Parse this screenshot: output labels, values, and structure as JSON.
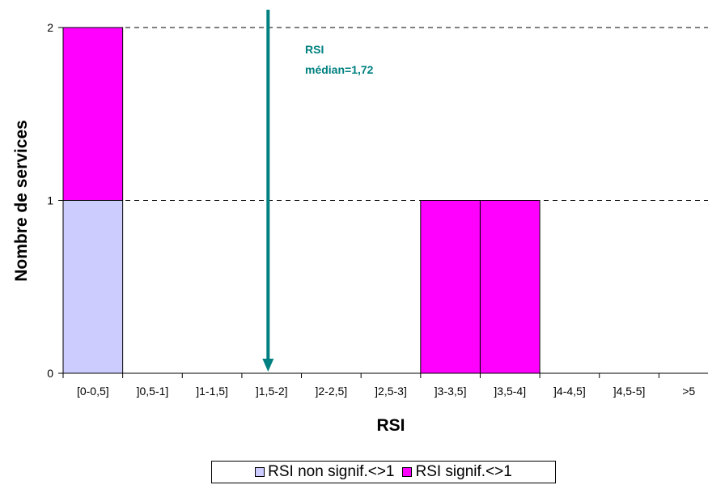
{
  "chart_data": {
    "type": "bar",
    "stacked": true,
    "categories": [
      "[0-0,5]",
      "]0,5-1]",
      "]1-1,5]",
      "]1,5-2]",
      "]2-2,5]",
      "]2,5-3]",
      "]3-3,5]",
      "]3,5-4]",
      "]4-4,5]",
      "]4,5-5]",
      ">5"
    ],
    "series": [
      {
        "name": "RSI non signif.<>1",
        "color": "#CCCCFF",
        "values": [
          1,
          0,
          0,
          0,
          0,
          0,
          0,
          0,
          0,
          0,
          0
        ]
      },
      {
        "name": "RSI signif.<>1",
        "color": "#FF00FF",
        "values": [
          1,
          0,
          0,
          0,
          0,
          0,
          1,
          1,
          0,
          0,
          0
        ]
      }
    ],
    "xlabel": "RSI",
    "ylabel": "Nombre de services",
    "ylim": [
      0,
      2
    ],
    "yticks": [
      "0",
      "1",
      "2"
    ],
    "grid": "horizontal dashed",
    "legend_position": "bottom",
    "annotation": {
      "line1": "RSI",
      "line2": "médian=1,72",
      "x_value": 1.72,
      "color": "#008080"
    }
  }
}
